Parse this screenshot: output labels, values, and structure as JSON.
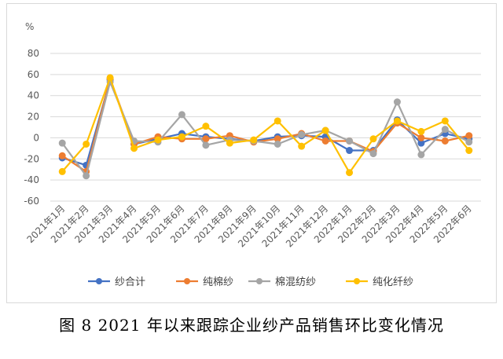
{
  "caption": "图 8   2021 年以来跟踪企业纱产品销售环比变化情况",
  "chart_data": {
    "type": "line",
    "ylabel": "%",
    "ylim": [
      -60,
      80
    ],
    "yticks": [
      80,
      60,
      40,
      20,
      0,
      -20,
      -40,
      -60
    ],
    "grid": true,
    "legend": "bottom",
    "categories": [
      "2021年1月",
      "2021年2月",
      "2021年3月",
      "2021年4月",
      "2021年5月",
      "2021年6月",
      "2021年7月",
      "2021年8月",
      "2021年9月",
      "2021年10月",
      "2021年11月",
      "2021年12月",
      "2022年1月",
      "2022年2月",
      "2022年3月",
      "2022年4月",
      "2022年5月",
      "2022年6月"
    ],
    "series": [
      {
        "name": "纱合计",
        "color": "#4472C4",
        "values": [
          -19,
          -26,
          55,
          -6,
          -1,
          4,
          1,
          -1,
          -3,
          1,
          2,
          1,
          -12,
          -12,
          17,
          -5,
          4,
          -1
        ]
      },
      {
        "name": "纯棉纱",
        "color": "#ED7D31",
        "values": [
          -17,
          -32,
          56,
          -6,
          1,
          -1,
          -1,
          2,
          -4,
          -1,
          4,
          -3,
          -3,
          -13,
          14,
          0,
          -3,
          2
        ]
      },
      {
        "name": "棉混纺纱",
        "color": "#A5A5A5",
        "values": [
          -5,
          -36,
          53,
          -3,
          -4,
          22,
          -7,
          -2,
          -3,
          -6,
          3,
          7,
          -3,
          -15,
          34,
          -16,
          8,
          -4
        ]
      },
      {
        "name": "纯化纤纱",
        "color": "#FFC000",
        "values": [
          -32,
          -6,
          57,
          -10,
          -2,
          1,
          11,
          -5,
          -2,
          16,
          -8,
          7,
          -33,
          -1,
          16,
          6,
          16,
          -12
        ]
      }
    ]
  }
}
